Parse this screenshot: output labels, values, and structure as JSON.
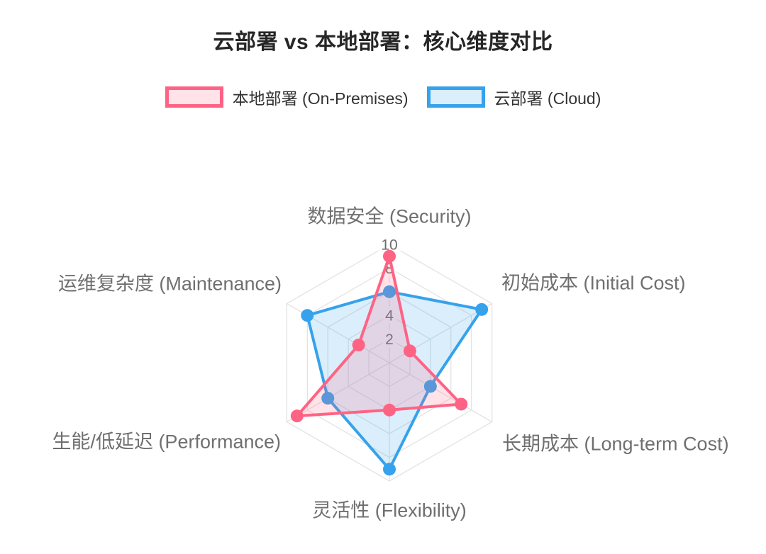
{
  "chart_data": {
    "type": "radar",
    "title": "云部署 vs 本地部署：核心维度对比",
    "categories": [
      "数据安全 (Security)",
      "初始成本 (Initial Cost)",
      "长期成本 (Long-term Cost)",
      "灵活性 (Flexibility)",
      "生能/低延迟 (Performance)",
      "运维复杂度 (Maintenance)"
    ],
    "series": [
      {
        "name": "本地部署 (On-Premises)",
        "values": [
          9,
          2,
          7,
          4,
          9,
          3
        ],
        "color": "#FF6384",
        "fill": "rgba(255,99,132,0.18)"
      },
      {
        "name": "云部署 (Cloud)",
        "values": [
          6,
          9,
          4,
          9,
          6,
          8
        ],
        "color": "#36A2EB",
        "fill": "rgba(54,162,235,0.18)"
      }
    ],
    "scale": {
      "min": 0,
      "max": 10,
      "ticks": [
        2,
        4,
        6,
        8,
        10
      ]
    },
    "grid": true,
    "legend_position": "top",
    "colors": {
      "title_text": "#262626",
      "legend_text": "#333333",
      "axis_label_text": "#6f6f6f",
      "tick_text": "#6b6b6b",
      "grid_line": "#e3e3e3",
      "tick_backdrop": "rgba(255,255,255,0.75)"
    }
  }
}
